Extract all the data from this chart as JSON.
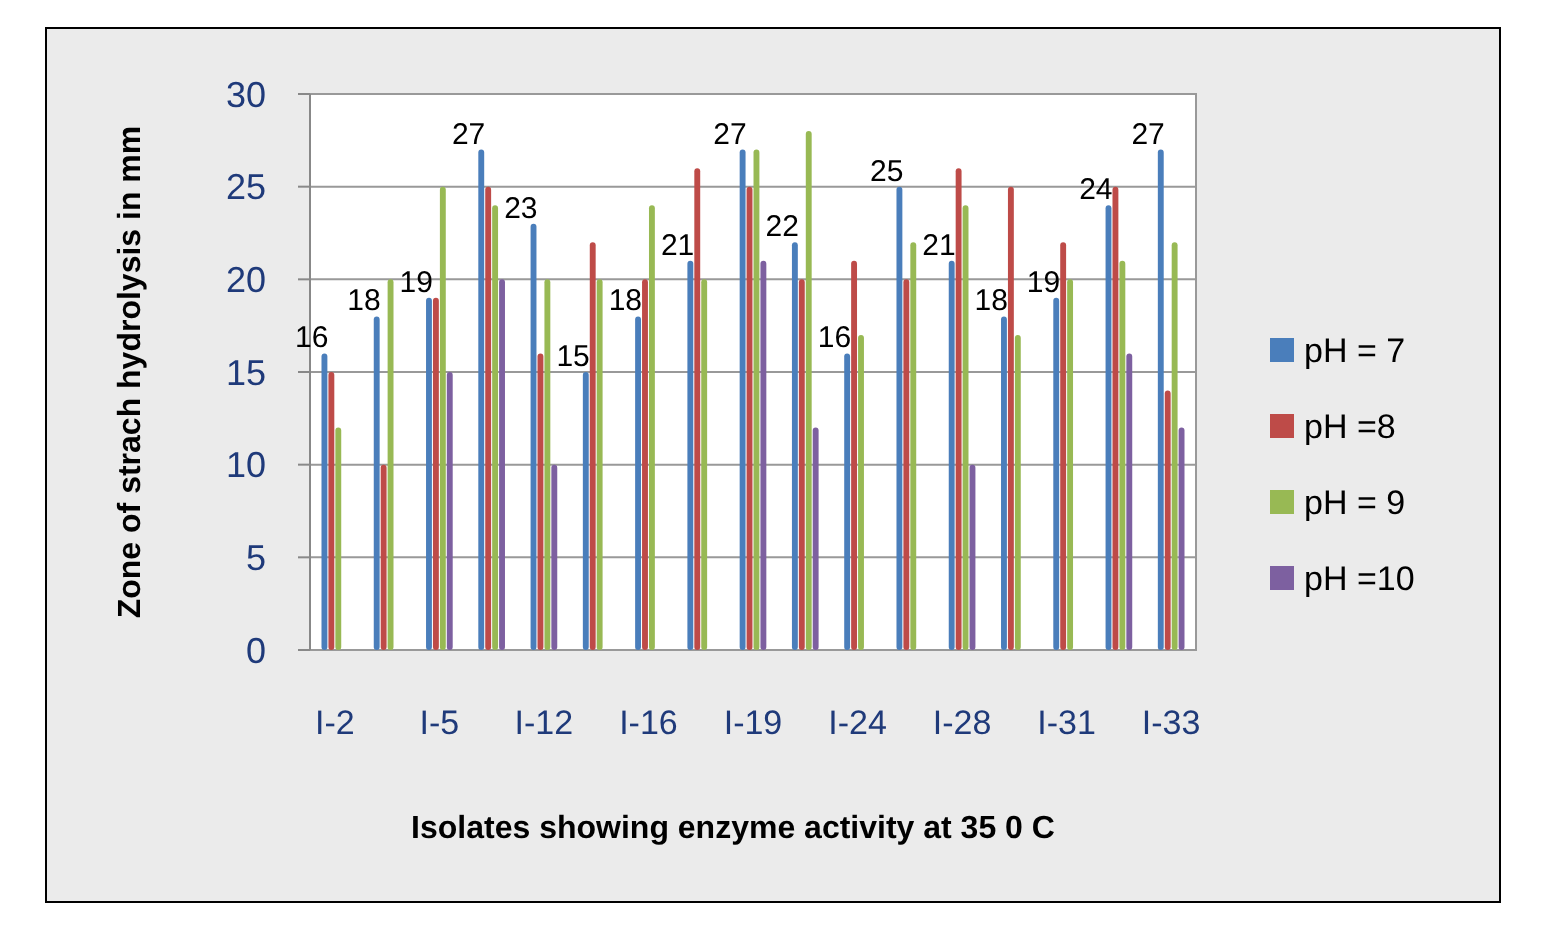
{
  "chart_data": {
    "type": "bar",
    "xlabel": "Isolates showing enzyme activity at 35 0 C",
    "ylabel": "Zone of strach hydrolysis in mm",
    "categories": [
      "I-2",
      null,
      "I-5",
      null,
      "I-12",
      null,
      "I-16",
      null,
      "I-19",
      null,
      "I-24",
      null,
      "I-28",
      null,
      "I-31",
      null,
      "I-33"
    ],
    "series": [
      {
        "name": "pH = 7",
        "color": "#4a7ebb",
        "values": [
          16,
          18,
          19,
          27,
          23,
          15,
          18,
          21,
          27,
          22,
          16,
          25,
          21,
          18,
          19,
          24,
          27
        ],
        "value_labels": [
          "16",
          "18",
          "19",
          "27",
          "23",
          "15",
          "18",
          "21",
          "27",
          "22",
          "16",
          "25",
          "21",
          "18",
          "19",
          "24",
          "27"
        ]
      },
      {
        "name": "pH =8",
        "color": "#be4b48",
        "values": [
          15,
          10,
          19,
          25,
          16,
          22,
          20,
          26,
          25,
          20,
          21,
          20,
          26,
          25,
          22,
          25,
          14
        ]
      },
      {
        "name": "pH = 9",
        "color": "#98b954",
        "values": [
          12,
          20,
          25,
          24,
          20,
          20,
          24,
          20,
          27,
          28,
          17,
          22,
          24,
          17,
          20,
          21,
          22
        ]
      },
      {
        "name": "pH =10",
        "color": "#7d60a0",
        "values": [
          0,
          0,
          15,
          20,
          10,
          0,
          0,
          0,
          21,
          12,
          0,
          0,
          10,
          0,
          0,
          16,
          12
        ]
      }
    ],
    "ylim": [
      0,
      30
    ],
    "yticks": [
      0,
      5,
      10,
      15,
      20,
      25,
      30
    ],
    "grid": "y",
    "legend": "right"
  }
}
